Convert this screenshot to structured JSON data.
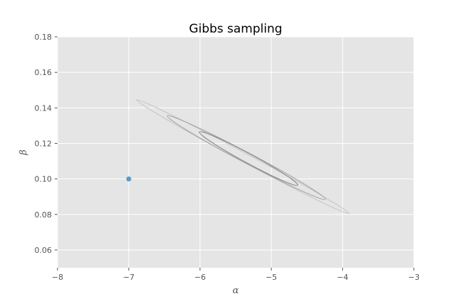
{
  "chart_data": {
    "type": "scatter",
    "title": "Gibbs sampling",
    "xlabel": "α",
    "ylabel": "β",
    "xlim": [
      -8,
      -3
    ],
    "ylim": [
      0.05,
      0.18
    ],
    "xticks": [
      -8,
      -7,
      -6,
      -5,
      -4,
      -3
    ],
    "xtick_labels": [
      "−8",
      "−7",
      "−6",
      "−5",
      "−4",
      "−3"
    ],
    "yticks": [
      0.06,
      0.08,
      0.1,
      0.12,
      0.14,
      0.16,
      0.18
    ],
    "ytick_labels": [
      "0.06",
      "0.08",
      "0.10",
      "0.12",
      "0.14",
      "0.16",
      "0.18"
    ],
    "grid": true,
    "background": "#e5e5e5",
    "grid_color": "#ffffff",
    "points": [
      {
        "x": -7.0,
        "y": 0.1,
        "color": "#5b9bc7"
      }
    ],
    "contours": [
      {
        "level": "outer",
        "color": "#c8c8c8",
        "center": [
          -5.4,
          0.1125
        ],
        "endpoints": [
          [
            -6.89,
            0.1445
          ],
          [
            -3.91,
            0.0805
          ]
        ],
        "half_width_y": 0.0028
      },
      {
        "level": "middle",
        "color": "#a8a8a8",
        "center": [
          -5.35,
          0.112
        ],
        "endpoints": [
          [
            -6.46,
            0.1355
          ],
          [
            -4.24,
            0.0885
          ]
        ],
        "half_width_y": 0.0033
      },
      {
        "level": "inner",
        "color": "#8c8c8c",
        "center": [
          -5.32,
          0.1115
        ],
        "endpoints": [
          [
            -6.01,
            0.1265
          ],
          [
            -4.63,
            0.0965
          ]
        ],
        "half_width_y": 0.003
      }
    ]
  }
}
